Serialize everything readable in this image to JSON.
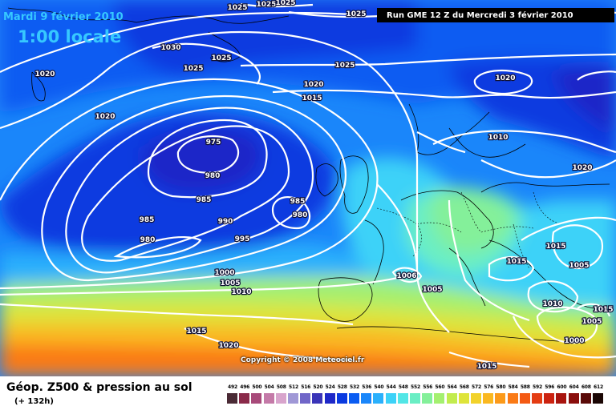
{
  "header": {
    "date": "Mardi 9 février 2010",
    "time": "1:00 locale",
    "run": "Run GME 12 Z du Mercredi 3 février 2010"
  },
  "map": {
    "copyright": "Copyright © 2008 Meteociel.fr",
    "isobar_labels": [
      "1025",
      "1025",
      "1025",
      "1025",
      "1030",
      "1025",
      "1025",
      "1020",
      "1025",
      "1020",
      "1015",
      "1020",
      "1020",
      "1010",
      "1020",
      "975",
      "980",
      "985",
      "985",
      "980",
      "985",
      "980",
      "990",
      "995",
      "1000",
      "1005",
      "1010",
      "1006",
      "1005",
      "1015",
      "1015",
      "1005",
      "1010",
      "1015",
      "1005",
      "1000",
      "1015",
      "1020",
      "1015"
    ]
  },
  "legend": {
    "title": "Géop. Z500 & pression au sol",
    "subtitle": "(+ 132h)",
    "scale_values": [
      "492",
      "496",
      "500",
      "504",
      "508",
      "512",
      "516",
      "520",
      "524",
      "528",
      "532",
      "536",
      "540",
      "544",
      "548",
      "552",
      "556",
      "560",
      "564",
      "568",
      "572",
      "576",
      "580",
      "584",
      "588",
      "592",
      "596",
      "600",
      "604",
      "608",
      "612"
    ],
    "scale_colors": [
      "#4a2a35",
      "#8a2a4a",
      "#a84a7a",
      "#c47aa8",
      "#d8a4cc",
      "#a098d6",
      "#7066c8",
      "#3a34b8",
      "#1e28c8",
      "#0a3ae0",
      "#0a5cf2",
      "#1a86fa",
      "#2ab0fc",
      "#3cd2f8",
      "#52e6e6",
      "#6aeec4",
      "#84f09a",
      "#a4f070",
      "#c2ec4e",
      "#dee43a",
      "#f2d22a",
      "#fab820",
      "#fc9a1a",
      "#fa7a16",
      "#f45a14",
      "#e43c12",
      "#cc2210",
      "#a8140e",
      "#8a0e0c",
      "#5a0a08",
      "#1a0604"
    ]
  }
}
